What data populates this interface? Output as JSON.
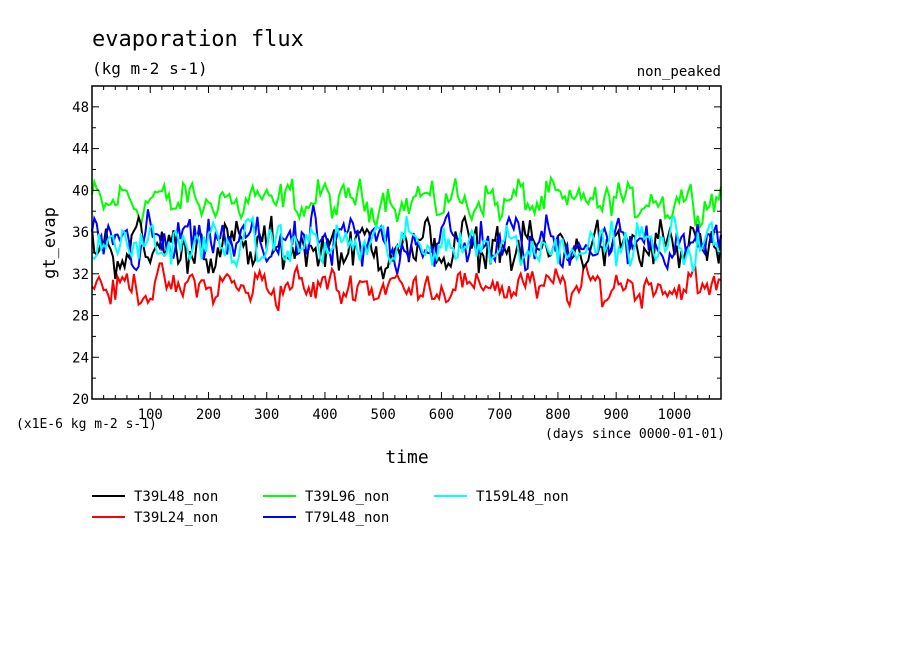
{
  "chart_data": {
    "type": "line",
    "title": "evaporation flux",
    "units_label": "(kg m-2 s-1)",
    "top_right_note": "non_peaked",
    "ylabel": "gt_evap",
    "y_multiplier_label": "(x1E-6 kg m-2 s-1)",
    "xlabel": "time",
    "x_units_label": "(days since 0000-01-01)",
    "xlim": [
      0,
      1080
    ],
    "ylim": [
      20,
      50
    ],
    "x_ticks": [
      100,
      200,
      300,
      400,
      500,
      600,
      700,
      800,
      900,
      1000
    ],
    "y_ticks": [
      20,
      24,
      28,
      32,
      36,
      40,
      44,
      48
    ],
    "legend_position": "bottom-left",
    "sample_step_days": 4,
    "series": [
      {
        "name": "T39L48_non",
        "color": "#000000",
        "mean": 34.5,
        "amplitude": 1.6,
        "min": 31.5,
        "max": 38.5
      },
      {
        "name": "T39L24_non",
        "color": "#ff0000",
        "mean": 30.8,
        "amplitude": 1.1,
        "min": 28.3,
        "max": 33.0
      },
      {
        "name": "T39L96_non",
        "color": "#00ff00",
        "mean": 39.0,
        "amplitude": 1.2,
        "min": 36.5,
        "max": 42.2
      },
      {
        "name": "T79L48_non",
        "color": "#0000ff",
        "mean": 35.0,
        "amplitude": 1.6,
        "min": 31.0,
        "max": 40.8
      },
      {
        "name": "T159L48_non",
        "color": "#00ffff",
        "mean": 34.8,
        "amplitude": 1.3,
        "min": 32.0,
        "max": 38.2
      }
    ]
  }
}
